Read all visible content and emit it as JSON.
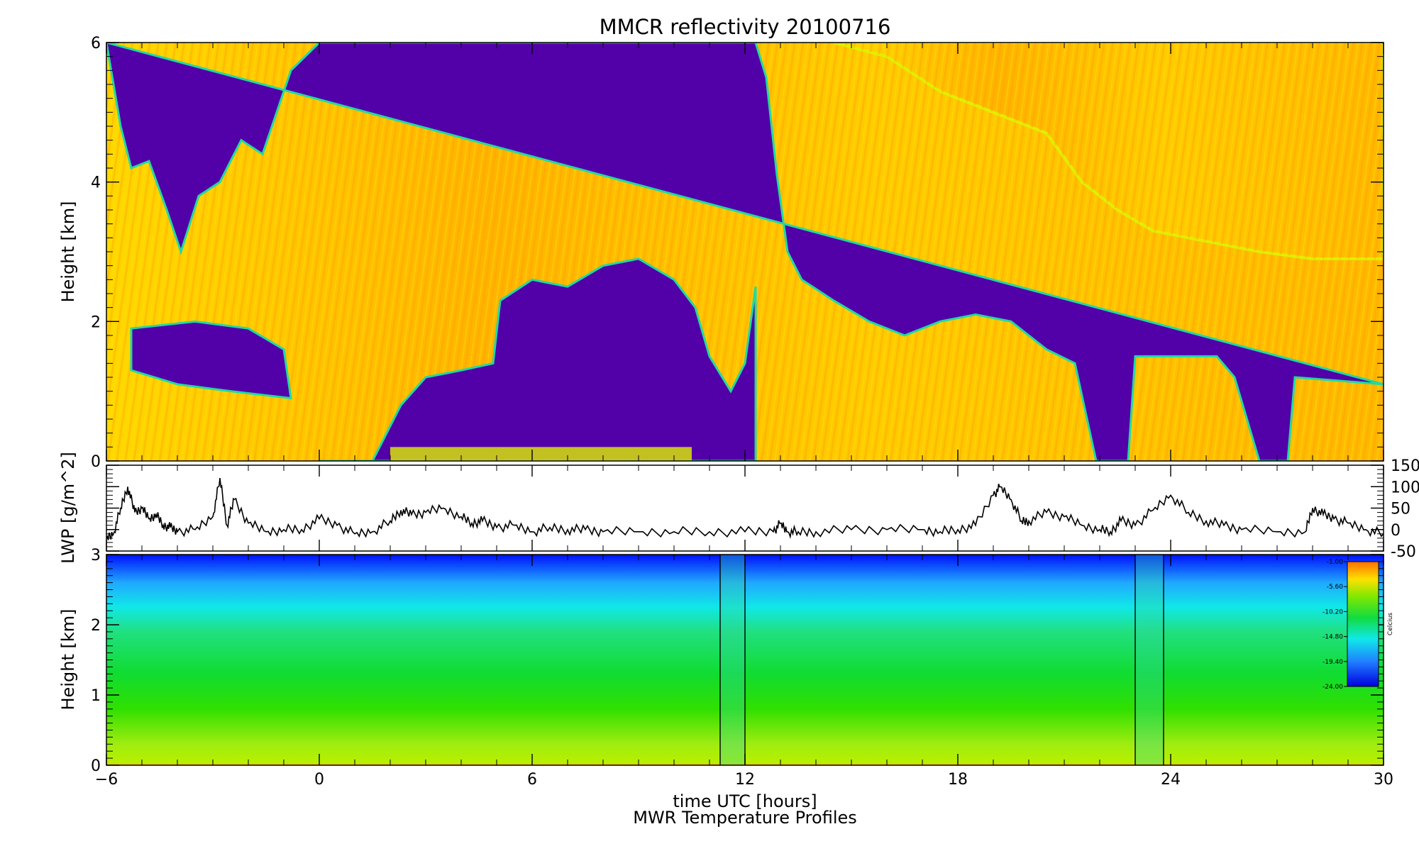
{
  "chart_data": [
    {
      "panel": "reflectivity",
      "type": "heatmap",
      "title": "MMCR reflectivity      20100716",
      "xlabel": "",
      "ylabel": "Height [km]",
      "xlim": [
        -6,
        30
      ],
      "ylim": [
        0,
        6
      ],
      "y_ticks": [
        "0",
        "2",
        "4",
        "6"
      ],
      "colors": {
        "clear": "#5200a8",
        "edge": "#22d9a0",
        "light": "#e0f000",
        "mid": "#ffe600",
        "strong": "#ffb000"
      },
      "cloud_top_km": [
        {
          "x": -6.0,
          "top": 6.0
        },
        {
          "x": -5.6,
          "top": 4.8
        },
        {
          "x": -5.3,
          "top": 4.2
        },
        {
          "x": -4.8,
          "top": 4.3
        },
        {
          "x": -4.3,
          "top": 3.6
        },
        {
          "x": -3.9,
          "top": 3.0
        },
        {
          "x": -3.4,
          "top": 3.8
        },
        {
          "x": -2.8,
          "top": 4.0
        },
        {
          "x": -2.2,
          "top": 4.6
        },
        {
          "x": -1.6,
          "top": 4.4
        },
        {
          "x": -0.8,
          "top": 5.6
        },
        {
          "x": 0.0,
          "top": 6.0
        },
        {
          "x": 12.3,
          "top": 6.0
        },
        {
          "x": 12.6,
          "top": 5.5
        },
        {
          "x": 12.9,
          "top": 4.1
        },
        {
          "x": 13.2,
          "top": 3.0
        },
        {
          "x": 13.6,
          "top": 2.6
        },
        {
          "x": 14.5,
          "top": 2.3
        },
        {
          "x": 15.5,
          "top": 2.0
        },
        {
          "x": 16.5,
          "top": 1.8
        },
        {
          "x": 17.5,
          "top": 2.0
        },
        {
          "x": 18.5,
          "top": 2.1
        },
        {
          "x": 19.5,
          "top": 2.0
        },
        {
          "x": 20.5,
          "top": 1.6
        },
        {
          "x": 21.3,
          "top": 1.4
        },
        {
          "x": 21.9,
          "top": 0.0
        },
        {
          "x": 22.8,
          "top": 0.0
        },
        {
          "x": 23.0,
          "top": 1.5
        },
        {
          "x": 25.3,
          "top": 1.5
        },
        {
          "x": 25.8,
          "top": 1.2
        },
        {
          "x": 26.5,
          "top": 0.0
        },
        {
          "x": 27.3,
          "top": 0.0
        },
        {
          "x": 27.5,
          "top": 1.2
        },
        {
          "x": 30.0,
          "top": 1.1
        }
      ],
      "upper_cloud_base_km": [
        {
          "x": 14.5,
          "base": 6.0
        },
        {
          "x": 16.0,
          "base": 5.8
        },
        {
          "x": 17.5,
          "base": 5.3
        },
        {
          "x": 19.0,
          "base": 5.0
        },
        {
          "x": 20.5,
          "base": 4.7
        },
        {
          "x": 21.5,
          "base": 4.0
        },
        {
          "x": 22.5,
          "base": 3.6
        },
        {
          "x": 23.5,
          "base": 3.3
        },
        {
          "x": 24.5,
          "base": 3.2
        },
        {
          "x": 25.5,
          "base": 3.1
        },
        {
          "x": 26.5,
          "base": 3.0
        },
        {
          "x": 28.0,
          "base": 2.9
        },
        {
          "x": 30.0,
          "base": 2.9
        }
      ],
      "mid_cloud_base_km": [
        {
          "x": 0.0,
          "base": 0.0
        },
        {
          "x": 1.5,
          "base": 0.0
        },
        {
          "x": 2.3,
          "base": 0.8
        },
        {
          "x": 3.0,
          "base": 1.2
        },
        {
          "x": 4.0,
          "base": 1.3
        },
        {
          "x": 4.9,
          "base": 1.4
        },
        {
          "x": 5.1,
          "base": 2.3
        },
        {
          "x": 6.0,
          "base": 2.6
        },
        {
          "x": 7.0,
          "base": 2.5
        },
        {
          "x": 8.0,
          "base": 2.8
        },
        {
          "x": 9.0,
          "base": 2.9
        },
        {
          "x": 10.0,
          "base": 2.6
        },
        {
          "x": 10.6,
          "base": 2.2
        },
        {
          "x": 11.0,
          "base": 1.5
        },
        {
          "x": 11.6,
          "base": 1.0
        },
        {
          "x": 12.0,
          "base": 1.4
        },
        {
          "x": 12.3,
          "base": 2.5
        }
      ]
    },
    {
      "panel": "lwp",
      "type": "line",
      "title": "",
      "xlabel": "",
      "ylabel": "LWP [g/m^2]",
      "xlim": [
        -6,
        30
      ],
      "ylim": [
        -50,
        150
      ],
      "y_ticks": [
        "-50",
        "0",
        "50",
        "100",
        "150"
      ],
      "series": [
        {
          "x": [
            -6,
            -5.8,
            -5.6,
            -5.4,
            -5.2,
            -5.0,
            -4.8,
            -4.6,
            -4.4,
            -4.2,
            -4.0,
            -3.5,
            -3.0,
            -2.8,
            -2.6,
            -2.4,
            -2.0,
            -1.5,
            -1.0,
            -0.5,
            0,
            0.5,
            1.0,
            1.5,
            2.0,
            2.3,
            2.6,
            3.0,
            3.5,
            4.0,
            4.3,
            4.6,
            5.0,
            5.5,
            6.0,
            6.5,
            7.0,
            7.5,
            8.0,
            9.0,
            10.0,
            11.0,
            12.0,
            12.8,
            13.0,
            13.2,
            13.5,
            14.0,
            15.0,
            16.0,
            17.0,
            17.5,
            18.0,
            18.5,
            19.0,
            19.2,
            19.5,
            19.8,
            20.0,
            20.5,
            21.0,
            21.5,
            22.0,
            22.3,
            22.6,
            23.0,
            23.5,
            24.0,
            24.5,
            25.0,
            25.5,
            26.0,
            27.0,
            27.8,
            28.0,
            28.3,
            28.6,
            29.0,
            29.5,
            30.0
          ],
          "values": [
            -20,
            -10,
            50,
            100,
            40,
            50,
            25,
            35,
            10,
            5,
            -5,
            0,
            30,
            120,
            10,
            70,
            15,
            -5,
            0,
            0,
            25,
            10,
            -10,
            -5,
            20,
            45,
            35,
            40,
            50,
            30,
            15,
            20,
            5,
            10,
            -5,
            5,
            0,
            0,
            -5,
            -5,
            -5,
            -5,
            -5,
            -5,
            15,
            -5,
            -5,
            -5,
            0,
            0,
            0,
            -5,
            0,
            10,
            80,
            100,
            70,
            20,
            20,
            40,
            30,
            10,
            0,
            -5,
            20,
            10,
            45,
            80,
            40,
            20,
            10,
            0,
            -5,
            -5,
            50,
            35,
            25,
            15,
            0,
            -10
          ]
        }
      ]
    },
    {
      "panel": "temperature",
      "type": "heatmap",
      "title": "",
      "xlabel": "time UTC [hours]",
      "subtitle": "MWR Temperature Profiles",
      "ylabel": "Height [km]",
      "xlim": [
        -6,
        30
      ],
      "ylim": [
        0,
        3
      ],
      "y_ticks": [
        "0",
        "1",
        "2",
        "3"
      ],
      "x_ticks": [
        "−6",
        "0",
        "6",
        "12",
        "18",
        "24",
        "30"
      ],
      "x_tick_values": [
        -6,
        0,
        6,
        12,
        18,
        24,
        30
      ],
      "level_stops_km": [
        {
          "h": 0.0,
          "color": "#ffc000"
        },
        {
          "h": 0.04,
          "color": "#b8f000"
        },
        {
          "h": 0.3,
          "color": "#a0ec10"
        },
        {
          "h": 0.8,
          "color": "#30e000"
        },
        {
          "h": 1.3,
          "color": "#10dc30"
        },
        {
          "h": 1.9,
          "color": "#20e080"
        },
        {
          "h": 2.25,
          "color": "#10e8e8"
        },
        {
          "h": 2.6,
          "color": "#20a8ff"
        },
        {
          "h": 3.0,
          "color": "#0010ff"
        }
      ],
      "gaps": [
        {
          "x0": 11.3,
          "x1": 12.0
        },
        {
          "x0": 23.0,
          "x1": 23.8
        }
      ],
      "colorbar": {
        "label": "Celcius",
        "ticks": [
          "-1.00",
          "-5.60",
          "-10.20",
          "-14.80",
          "-19.40",
          "-24.00"
        ],
        "tick_values": [
          -1.0,
          -5.6,
          -10.2,
          -14.8,
          -19.4,
          -24.0
        ]
      }
    }
  ]
}
